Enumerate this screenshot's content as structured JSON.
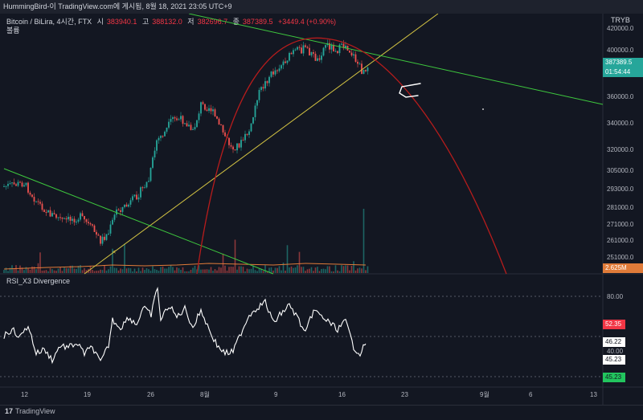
{
  "header": {
    "text": "HummingBird-이 TradingView.com에 게시됨, 8월 18, 2021 23:05 UTC+9"
  },
  "legend": {
    "symbol": "Bitcoin / BiLira, 4시간, FTX",
    "open_label": "시",
    "open_value": "383940.1",
    "high_label": "고",
    "high_value": "388132.0",
    "low_label": "저",
    "low_value": "382696.7",
    "close_label": "종",
    "close_value": "387389.5",
    "change": "+3449.4 (+0.90%)",
    "volume_label": "볼륨",
    "currency": "TRYB"
  },
  "price_axis": {
    "ticks": [
      "420000.0",
      "400000.0",
      "360000.0",
      "340000.0",
      "320000.0",
      "305000.0",
      "293000.0",
      "281000.0",
      "271000.0",
      "261000.0",
      "251000.0"
    ],
    "last_price": "387389.5",
    "countdown": "01:54:44",
    "volume_badge": "2.625M"
  },
  "rsi": {
    "title": "RSI_X3 Divergence",
    "ticks": [
      "80.00",
      "46.22",
      "40.00"
    ],
    "badges": [
      "52.35",
      "45.23",
      "45.23"
    ]
  },
  "time_axis": {
    "ticks": [
      "12",
      "19",
      "26",
      "8월",
      "9",
      "16",
      "23",
      "9월",
      "6",
      "13"
    ]
  },
  "footer": {
    "brand_mark": "17",
    "brand": "TradingView"
  },
  "colors": {
    "background": "#131722",
    "up": "#26a69a",
    "down": "#ef5350",
    "yellow_line": "#d4c443",
    "green_line": "#3ec83e",
    "arc": "#b71c1c",
    "rsi_line": "#ffffff"
  }
}
